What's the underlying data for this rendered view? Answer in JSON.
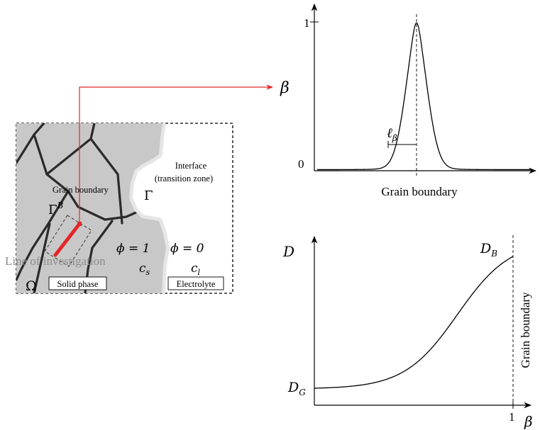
{
  "schematic": {
    "labels": {
      "grain_boundary": "Grain boundary",
      "gamma_b": "Γ",
      "gamma_b_sup": "B",
      "interface_line1": "Interface",
      "interface_line2": "(transition zone)",
      "gamma": "Γ",
      "line_of_investigation": "Line of investigation",
      "phi_solid": "ϕ = 1",
      "phi_liquid": "ϕ = 0",
      "c_s_main": "c",
      "c_s_sub": "s",
      "c_l_main": "c",
      "c_l_sub": "l",
      "omega": "Ω",
      "solid_phase": "Solid phase",
      "electrolyte": "Electrolyte"
    },
    "colors": {
      "solid": "#c8c8c8",
      "grain_line": "#2a2a2a",
      "interface_halo": "#e4e4e4",
      "investigation_line": "#e3262a",
      "connector": "#e3262a",
      "faded_text": "#8c8c8c"
    }
  },
  "chart_top": {
    "type": "line",
    "ylabel": "β",
    "xlabel": "Grain boundary",
    "y_ticks": [
      "0",
      "1"
    ],
    "width_label_main": "ℓ",
    "width_label_sub": "β",
    "shape": "peak"
  },
  "chart_bottom": {
    "type": "line",
    "ylabel": "D",
    "xlabel": "β",
    "x_ticks": [
      "1"
    ],
    "label_start_main": "D",
    "label_start_sub": "G",
    "label_end_main": "D",
    "label_end_sub": "B",
    "vertical_label": "Grain boundary",
    "shape": "monotone-increasing"
  }
}
